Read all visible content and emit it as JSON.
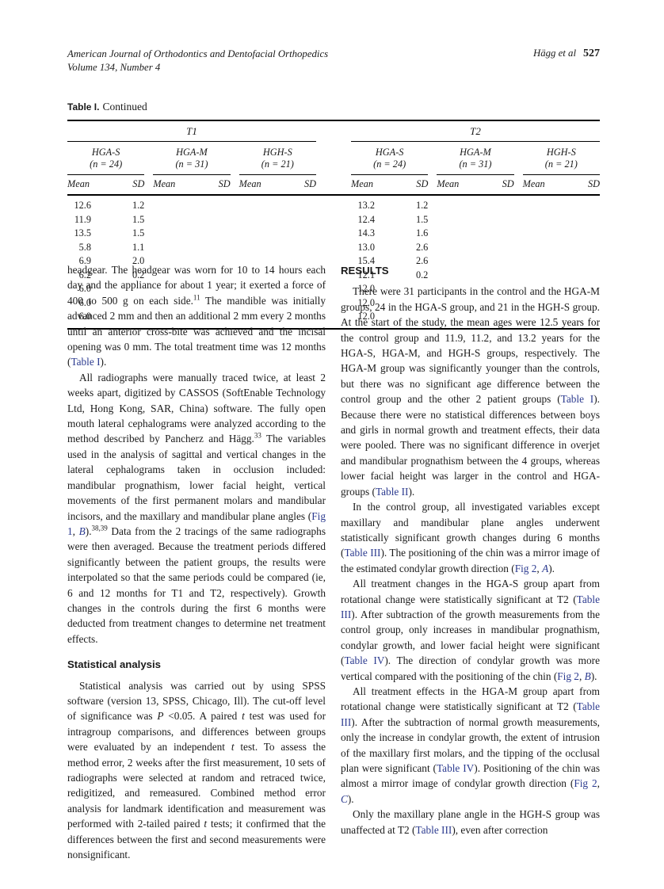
{
  "colors": {
    "link": "#2b3a8f",
    "text": "#1a1a1a"
  },
  "header": {
    "journal": "American Journal of Orthodontics and Dentofacial Orthopedics",
    "volume": "Volume 134, Number 4",
    "authors": "Hägg et al",
    "page_number": "527"
  },
  "table": {
    "title_label": "Table I.",
    "title_rest": "Continued",
    "col_headers": [
      "Mean",
      "SD"
    ],
    "periods": [
      {
        "label": "T1",
        "groups": [
          {
            "name": "HGA-S",
            "n": "(n = 24)"
          },
          {
            "name": "HGA-M",
            "n": "(n = 31)"
          },
          {
            "name": "HGH-S",
            "n": "(n = 21)"
          }
        ]
      },
      {
        "label": "T2",
        "groups": [
          {
            "name": "HGA-S",
            "n": "(n = 24)"
          },
          {
            "name": "HGA-M",
            "n": "(n = 31)"
          },
          {
            "name": "HGH-S",
            "n": "(n = 21)"
          }
        ]
      }
    ],
    "rows": [
      [
        "12.6",
        "1.2",
        "11.9",
        "1.5",
        "13.5",
        "1.5",
        "13.2",
        "1.2",
        "12.4",
        "1.5",
        "14.3",
        "1.6"
      ],
      [
        "5.8",
        "1.1",
        "6.9",
        "2.0",
        "6.2",
        "0.2",
        "13.0",
        "2.6",
        "15.4",
        "2.6",
        "12.1",
        "0.2"
      ],
      [
        "6.0",
        "",
        "6.0",
        "",
        "6.0",
        "",
        "12.0",
        "",
        "12.0",
        "",
        "12.0",
        ""
      ]
    ]
  },
  "left_column": {
    "blocks": [
      {
        "type": "p",
        "indent": false,
        "segments": [
          {
            "t": "headgear. The headgear was worn for 10 to 14 hours each day and the appliance for about 1 year; it exerted a force of 400 to 500 g on each side.",
            "s": "plain"
          },
          {
            "t": "11",
            "s": "sup"
          },
          {
            "t": " The mandible was initially advanced 2 mm and then an additional 2 mm every 2 months until an anterior cross-bite was achieved and the incisal opening was 0 mm. The total treatment time was 12 months (",
            "s": "plain"
          },
          {
            "t": "Table I",
            "s": "link"
          },
          {
            "t": ").",
            "s": "plain"
          }
        ]
      },
      {
        "type": "p",
        "indent": true,
        "segments": [
          {
            "t": "All radiographs were manually traced twice, at least 2 weeks apart, digitized by CASSOS (SoftEnable Technology Ltd, Hong Kong, SAR, China) software. The fully open mouth lateral cephalograms were analyzed according to the method described by Pancherz and Hägg.",
            "s": "plain"
          },
          {
            "t": "33",
            "s": "sup"
          },
          {
            "t": " The variables used in the analysis of sagittal and vertical changes in the lateral cephalograms taken in occlusion included: mandibular prognathism, lower facial height, vertical movements of the first permanent molars and mandibular incisors, and the maxillary and mandibular plane angles (",
            "s": "plain"
          },
          {
            "t": "Fig 1",
            "s": "link"
          },
          {
            "t": ", ",
            "s": "plain"
          },
          {
            "t": "B",
            "s": "ilink"
          },
          {
            "t": ").",
            "s": "plain"
          },
          {
            "t": "38,39",
            "s": "sup"
          },
          {
            "t": " Data from the 2 tracings of the same radiographs were then averaged. Because the treatment periods differed significantly between the patient groups, the results were interpolated so that the same periods could be compared (ie, 6 and 12 months for T1 and T2, respectively). Growth changes in the controls during the first 6 months were deducted from treatment changes to determine net treatment effects.",
            "s": "plain"
          }
        ]
      },
      {
        "type": "h2",
        "text": "Statistical analysis"
      },
      {
        "type": "p",
        "indent": true,
        "segments": [
          {
            "t": "Statistical analysis was carried out by using SPSS software (version 13, SPSS, Chicago, Ill). The cut-off level of significance was ",
            "s": "plain"
          },
          {
            "t": "P",
            "s": "italic"
          },
          {
            "t": " <0.05. A paired ",
            "s": "plain"
          },
          {
            "t": "t",
            "s": "italic"
          },
          {
            "t": " test was used for intragroup comparisons, and differences between groups were evaluated by an independent ",
            "s": "plain"
          },
          {
            "t": "t",
            "s": "italic"
          },
          {
            "t": " test. To assess the method error, 2 weeks after the first measurement, 10 sets of radiographs were selected at random and retraced twice, redigitized, and remeasured. Combined method error analysis for landmark identification and measurement was performed with 2-tailed paired ",
            "s": "plain"
          },
          {
            "t": "t",
            "s": "italic"
          },
          {
            "t": " tests; it confirmed that the differences between the first and second measurements were nonsignificant.",
            "s": "plain"
          }
        ]
      }
    ]
  },
  "right_column": {
    "blocks": [
      {
        "type": "h2",
        "text": "RESULTS"
      },
      {
        "type": "p",
        "indent": true,
        "segments": [
          {
            "t": "There were 31 participants in the control and the HGA-M groups, 24 in the HGA-S group, and 21 in the HGH-S group. At the start of the study, the mean ages were 12.5 years for the control group and 11.9, 11.2, and 13.2 years for the HGA-S, HGA-M, and HGH-S groups, respectively. The HGA-M group was significantly younger than the controls, but there was no significant age difference between the control group and the other 2 patient groups (",
            "s": "plain"
          },
          {
            "t": "Table I",
            "s": "link"
          },
          {
            "t": "). Because there were no statistical differences between boys and girls in normal growth and treatment effects, their data were pooled. There was no significant difference in overjet and mandibular prognathism between the 4 groups, whereas lower facial height was larger in the control and HGA-groups (",
            "s": "plain"
          },
          {
            "t": "Table II",
            "s": "link"
          },
          {
            "t": ").",
            "s": "plain"
          }
        ]
      },
      {
        "type": "p",
        "indent": true,
        "segments": [
          {
            "t": "In the control group, all investigated variables except maxillary and mandibular plane angles underwent statistically significant growth changes during 6 months (",
            "s": "plain"
          },
          {
            "t": "Table III",
            "s": "link"
          },
          {
            "t": "). The positioning of the chin was a mirror image of the estimated condylar growth direction (",
            "s": "plain"
          },
          {
            "t": "Fig 2",
            "s": "link"
          },
          {
            "t": ", ",
            "s": "plain"
          },
          {
            "t": "A",
            "s": "ilink"
          },
          {
            "t": ").",
            "s": "plain"
          }
        ]
      },
      {
        "type": "p",
        "indent": true,
        "segments": [
          {
            "t": "All treatment changes in the HGA-S group apart from rotational change were statistically significant at T2 (",
            "s": "plain"
          },
          {
            "t": "Table III",
            "s": "link"
          },
          {
            "t": "). After subtraction of the growth measurements from the control group, only increases in mandibular prognathism, condylar growth, and lower facial height were significant (",
            "s": "plain"
          },
          {
            "t": "Table IV",
            "s": "link"
          },
          {
            "t": "). The direction of condylar growth was more vertical compared with the positioning of the chin (",
            "s": "plain"
          },
          {
            "t": "Fig 2",
            "s": "link"
          },
          {
            "t": ", ",
            "s": "plain"
          },
          {
            "t": "B",
            "s": "ilink"
          },
          {
            "t": ").",
            "s": "plain"
          }
        ]
      },
      {
        "type": "p",
        "indent": true,
        "segments": [
          {
            "t": "All treatment effects in the HGA-M group apart from rotational change were statistically significant at T2 (",
            "s": "plain"
          },
          {
            "t": "Table III",
            "s": "link"
          },
          {
            "t": "). After the subtraction of normal growth measurements, only the increase in condylar growth, the extent of intrusion of the maxillary first molars, and the tipping of the occlusal plan were significant (",
            "s": "plain"
          },
          {
            "t": "Table IV",
            "s": "link"
          },
          {
            "t": "). Positioning of the chin was almost a mirror image of condylar growth direction (",
            "s": "plain"
          },
          {
            "t": "Fig 2",
            "s": "link"
          },
          {
            "t": ", ",
            "s": "plain"
          },
          {
            "t": "C",
            "s": "ilink"
          },
          {
            "t": ").",
            "s": "plain"
          }
        ]
      },
      {
        "type": "p",
        "indent": true,
        "segments": [
          {
            "t": "Only the maxillary plane angle in the HGH-S group was unaffected at T2 (",
            "s": "plain"
          },
          {
            "t": "Table III",
            "s": "link"
          },
          {
            "t": "), even after correction",
            "s": "plain"
          }
        ]
      }
    ]
  }
}
